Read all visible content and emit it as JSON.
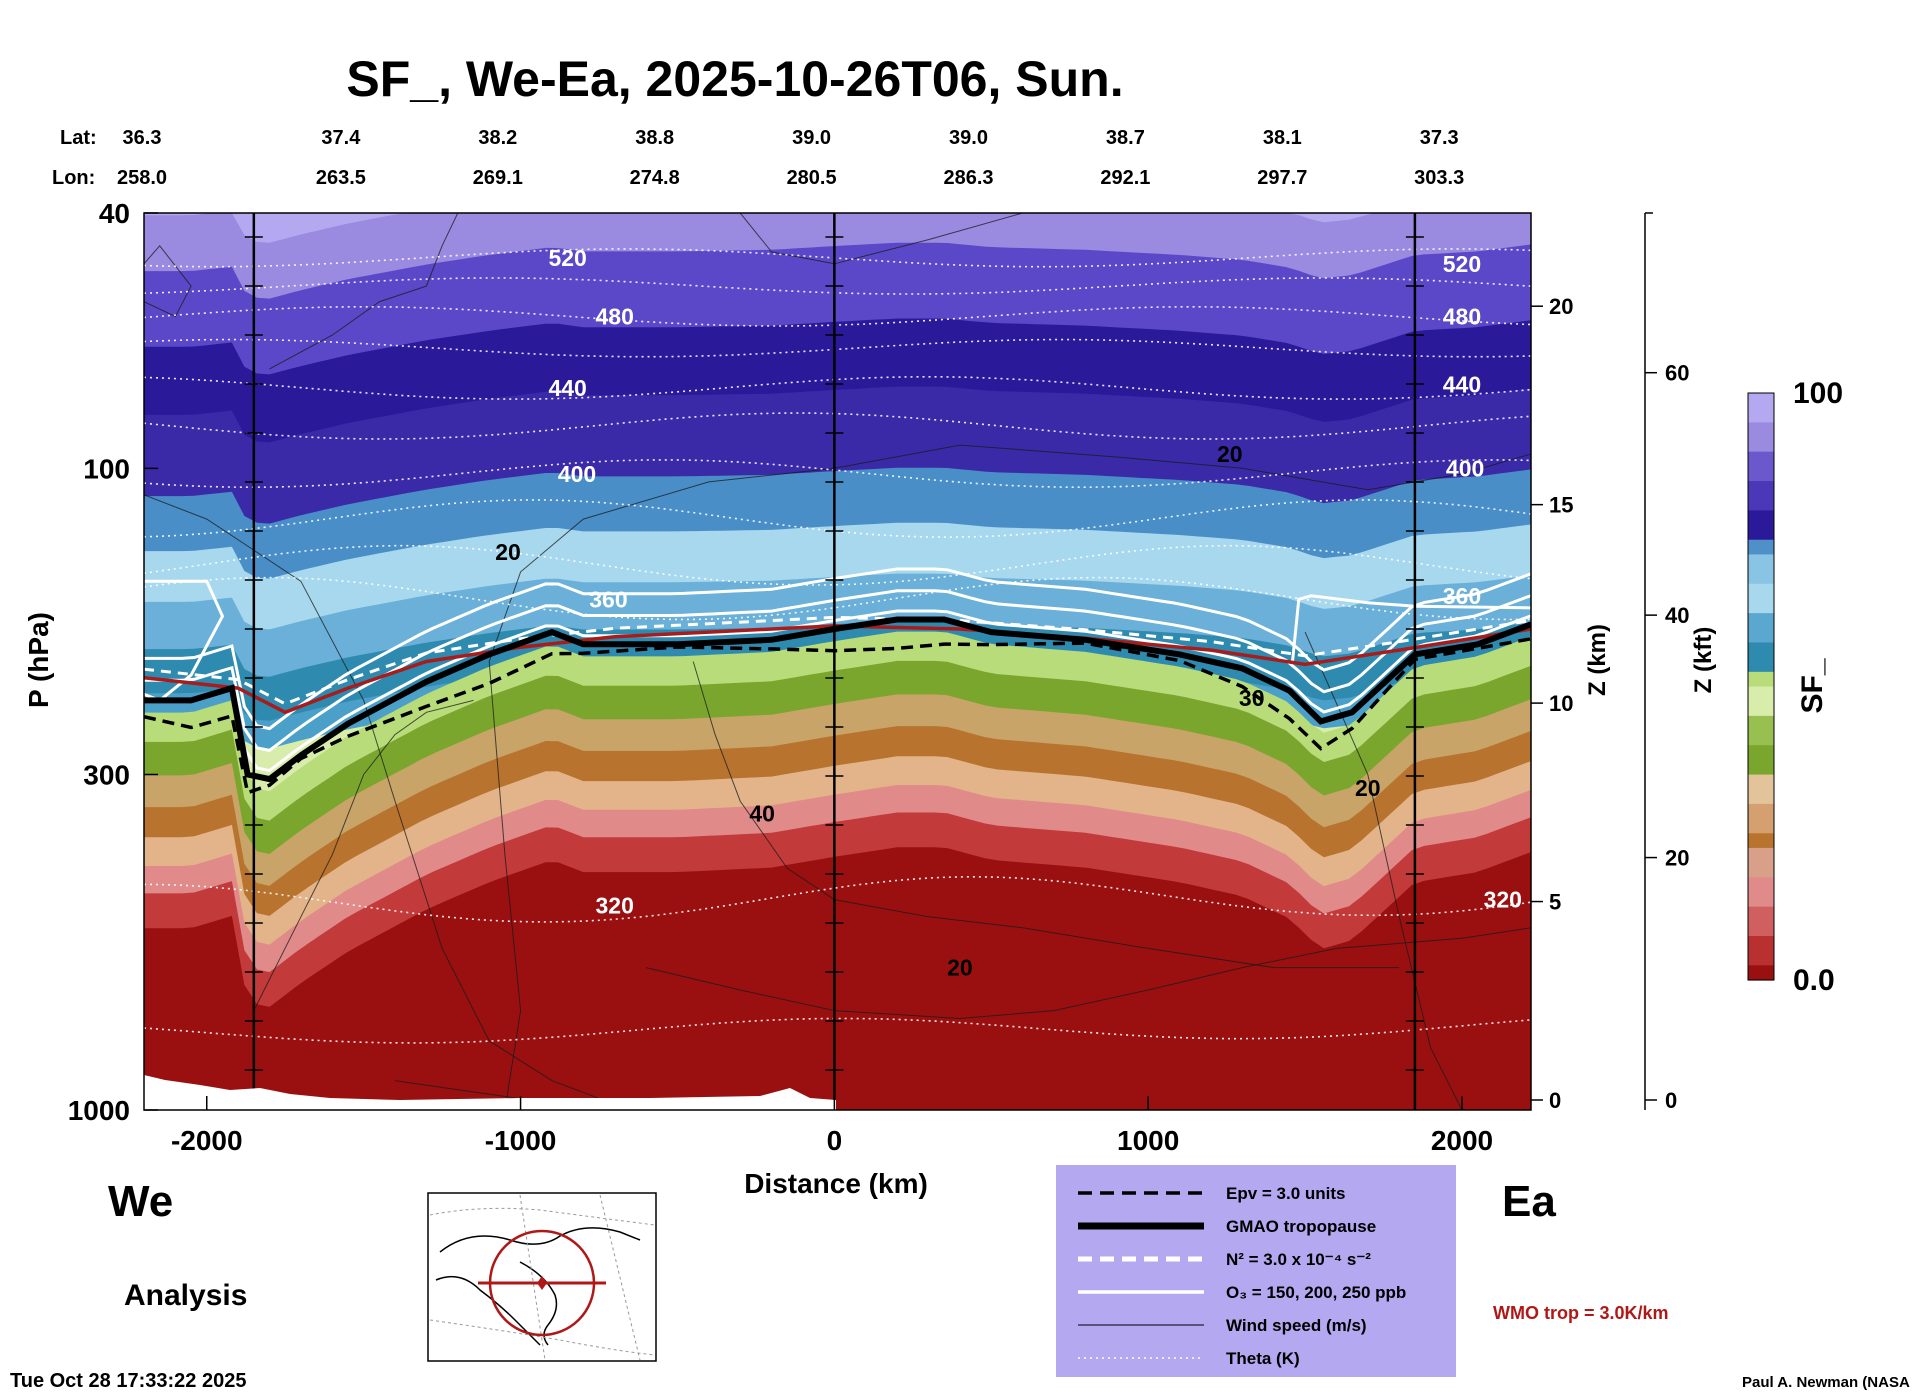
{
  "chart_data": {
    "type": "heatmap",
    "title": "SF_, We-Ea, 2025-10-26T06, Sun.",
    "xlabel": "Distance (km)",
    "ylabel": "P (hPa)",
    "z_km_label": "Z (km)",
    "z_kft_label": "Z (kft)",
    "colorbar_label": "SF_",
    "colorbar_max_label": "100",
    "colorbar_min_label": "0.0",
    "xlim": [
      -2200,
      2220
    ],
    "ylim_hpa": [
      1000,
      40
    ],
    "x_ticks": [
      {
        "value": -2000,
        "label": "-2000"
      },
      {
        "value": -1000,
        "label": "-1000"
      },
      {
        "value": 0,
        "label": "0"
      },
      {
        "value": 1000,
        "label": "1000"
      },
      {
        "value": 2000,
        "label": "2000"
      }
    ],
    "y_ticks": [
      {
        "value": 40,
        "label": "40"
      },
      {
        "value": 100,
        "label": "100"
      },
      {
        "value": 300,
        "label": "300"
      },
      {
        "value": 1000,
        "label": "1000"
      }
    ],
    "z_km_ticks": [
      {
        "value": 0,
        "label": "0"
      },
      {
        "value": 5,
        "label": "5"
      },
      {
        "value": 10,
        "label": "10"
      },
      {
        "value": 15,
        "label": "15"
      },
      {
        "value": 20,
        "label": "20"
      }
    ],
    "z_kft_ticks": [
      {
        "value": 0,
        "label": "0"
      },
      {
        "value": 20,
        "label": "20"
      },
      {
        "value": 40,
        "label": "40"
      },
      {
        "value": 60,
        "label": "60"
      }
    ],
    "lat_label": "Lat:",
    "lon_label": "Lon:",
    "positions": [
      {
        "x": -2200,
        "lat": "36.3",
        "lon": "258.0"
      },
      {
        "x": -1700,
        "lat": "37.4",
        "lon": "263.5"
      },
      {
        "x": -1200,
        "lat": "38.2",
        "lon": "269.1"
      },
      {
        "x": -700,
        "lat": "38.8",
        "lon": "274.8"
      },
      {
        "x": -200,
        "lat": "39.0",
        "lon": "280.5"
      },
      {
        "x": 300,
        "lat": "39.0",
        "lon": "286.3"
      },
      {
        "x": 800,
        "lat": "38.7",
        "lon": "292.1"
      },
      {
        "x": 1300,
        "lat": "38.1",
        "lon": "297.7"
      },
      {
        "x": 1800,
        "lat": "37.3",
        "lon": "303.3"
      }
    ],
    "vertical_lines_km": [
      -1850,
      0,
      1850
    ],
    "theta_labels": [
      {
        "label": "520",
        "x": -850,
        "p": 47
      },
      {
        "label": "520",
        "x": 2000,
        "p": 48
      },
      {
        "label": "480",
        "x": -700,
        "p": 58
      },
      {
        "label": "480",
        "x": 2000,
        "p": 58
      },
      {
        "label": "440",
        "x": -850,
        "p": 75
      },
      {
        "label": "440",
        "x": 2000,
        "p": 74
      },
      {
        "label": "400",
        "x": -820,
        "p": 102
      },
      {
        "label": "400",
        "x": 2010,
        "p": 100
      },
      {
        "label": "360",
        "x": -720,
        "p": 160
      },
      {
        "label": "360",
        "x": 2000,
        "p": 158
      },
      {
        "label": "320",
        "x": -700,
        "p": 480
      },
      {
        "label": "320",
        "x": 2130,
        "p": 470
      }
    ],
    "wind_labels": [
      {
        "label": "20",
        "x": -1040,
        "p": 135
      },
      {
        "label": "20",
        "x": 1260,
        "p": 95
      },
      {
        "label": "40",
        "x": -230,
        "p": 345
      },
      {
        "label": "20",
        "x": 400,
        "p": 600
      },
      {
        "label": "30",
        "x": 1330,
        "p": 228
      },
      {
        "label": "20",
        "x": 1700,
        "p": 315
      }
    ],
    "tropopause_p": [
      {
        "x": -2200,
        "p": 230
      },
      {
        "x": -2050,
        "p": 230
      },
      {
        "x": -1920,
        "p": 220
      },
      {
        "x": -1870,
        "p": 300
      },
      {
        "x": -1800,
        "p": 305
      },
      {
        "x": -1700,
        "p": 280
      },
      {
        "x": -1550,
        "p": 250
      },
      {
        "x": -1300,
        "p": 215
      },
      {
        "x": -1100,
        "p": 195
      },
      {
        "x": -900,
        "p": 180
      },
      {
        "x": -800,
        "p": 188
      },
      {
        "x": -500,
        "p": 188
      },
      {
        "x": -200,
        "p": 185
      },
      {
        "x": 0,
        "p": 178
      },
      {
        "x": 200,
        "p": 172
      },
      {
        "x": 350,
        "p": 172
      },
      {
        "x": 500,
        "p": 180
      },
      {
        "x": 800,
        "p": 185
      },
      {
        "x": 1100,
        "p": 195
      },
      {
        "x": 1300,
        "p": 205
      },
      {
        "x": 1450,
        "p": 222
      },
      {
        "x": 1550,
        "p": 248
      },
      {
        "x": 1650,
        "p": 240
      },
      {
        "x": 1850,
        "p": 195
      },
      {
        "x": 2050,
        "p": 188
      },
      {
        "x": 2220,
        "p": 175
      }
    ],
    "wmo_trop_p": [
      {
        "x": -2200,
        "p": 212
      },
      {
        "x": -1900,
        "p": 220
      },
      {
        "x": -1750,
        "p": 240
      },
      {
        "x": -1550,
        "p": 220
      },
      {
        "x": -1300,
        "p": 200
      },
      {
        "x": -1000,
        "p": 190
      },
      {
        "x": -700,
        "p": 183
      },
      {
        "x": -400,
        "p": 180
      },
      {
        "x": 0,
        "p": 176
      },
      {
        "x": 400,
        "p": 178
      },
      {
        "x": 800,
        "p": 184
      },
      {
        "x": 1200,
        "p": 192
      },
      {
        "x": 1500,
        "p": 202
      },
      {
        "x": 1800,
        "p": 192
      },
      {
        "x": 2220,
        "p": 178
      }
    ],
    "color_scale": [
      "#9a1010",
      "#c23a3a",
      "#e08a8a",
      "#b8742e",
      "#e3b48a",
      "#7aa62e",
      "#b8dc7a",
      "#d8ecac",
      "#2f8ab0",
      "#6ab0d8",
      "#a8d8ee",
      "#2a1a9a",
      "#5a48c8",
      "#9a8ae0",
      "#b4a8f0"
    ]
  },
  "labels": {
    "west": "We",
    "east": "Ea",
    "analysis": "Analysis",
    "timestamp": "Tue Oct 28 17:33:22 2025",
    "credit": "Paul A. Newman (NASA",
    "wmo": "WMO trop = 3.0K/km"
  },
  "legend": {
    "items": [
      {
        "style": "dash-black",
        "label": "Epv = 3.0 units"
      },
      {
        "style": "thick-black",
        "label": "GMAO tropopause"
      },
      {
        "style": "dash-white",
        "label": "N² = 3.0 x 10⁻⁴ s⁻²"
      },
      {
        "style": "solid-white",
        "label": "O₃ = 150, 200, 250 ppb"
      },
      {
        "style": "thin-black",
        "label": "Wind speed (m/s)"
      },
      {
        "style": "dot-white",
        "label": "Theta (K)"
      }
    ]
  }
}
